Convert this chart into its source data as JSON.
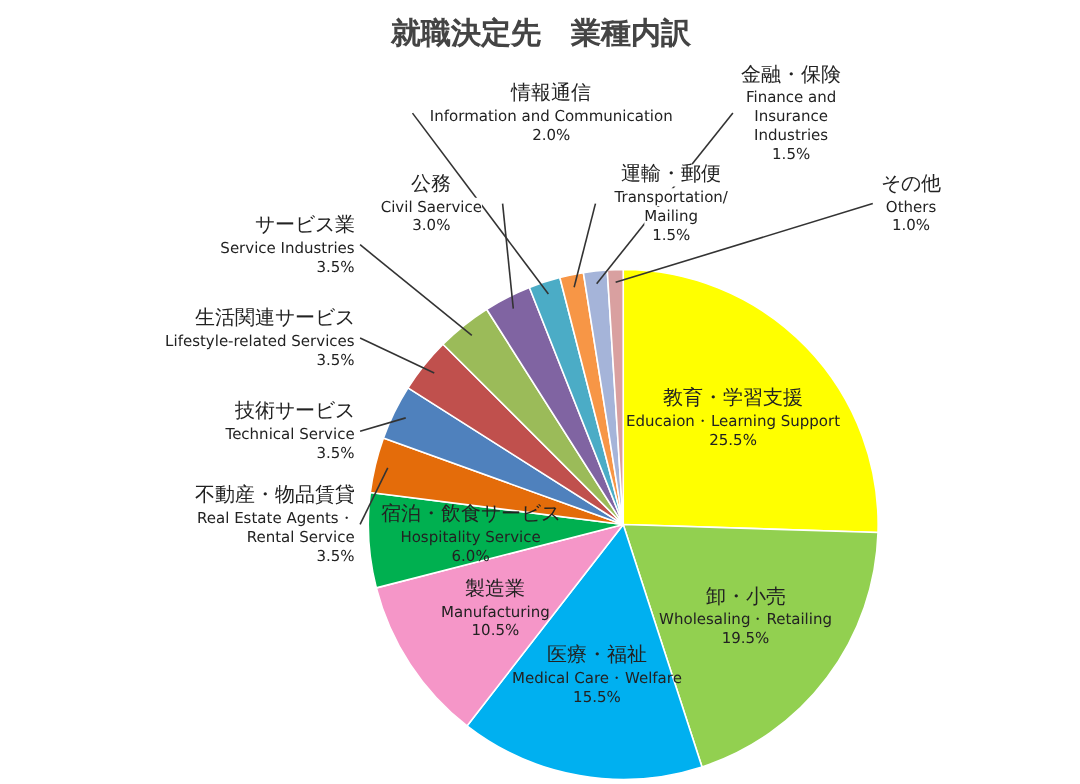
{
  "chart_data": {
    "type": "pie",
    "title": "就職決定先　業種内訳",
    "categories": [
      "教育・学習支援\nEducaion・Learning Support",
      "卸・小売\nWholesaling・Retailing",
      "医療・福祉\nMedical Care・Welfare",
      "製造業\nManufacturing",
      "宿泊・飲食サービス\nHospitality Service",
      "不動産・物品賃貸\nReal Estate Agents・\nRental Service",
      "技術サービス\nTechnical Service",
      "生活関連サービス\nLifestyle-related Services",
      "サービス業\nService Industries",
      "公務\nCivil Saervice",
      "情報通信\nInformation and Communication",
      "運輸・郵便\nTransportation/\nMailing",
      "金融・保険\nFinance and\nInsurance\nIndustries",
      "その他\nOthers"
    ],
    "values": [
      25.5,
      19.5,
      15.5,
      10.5,
      6.0,
      3.5,
      3.5,
      3.5,
      3.5,
      3.0,
      2.0,
      1.5,
      1.5,
      1.0
    ],
    "value_labels": [
      "25.5%",
      "19.5%",
      "15.5%",
      "10.5%",
      "6.0%",
      "3.5%",
      "3.5%",
      "3.5%",
      "3.5%",
      "3.0%",
      "2.0%",
      "1.5%",
      "1.5%",
      "1.0%"
    ],
    "colors": [
      "#ffff00",
      "#92d050",
      "#00b0f0",
      "#f596c8",
      "#00b050",
      "#e46c0a",
      "#4f81bd",
      "#c0504d",
      "#9bbb59",
      "#8064a2",
      "#4bacc6",
      "#f79646",
      "#a5b4d9",
      "#d9a0a0"
    ]
  }
}
